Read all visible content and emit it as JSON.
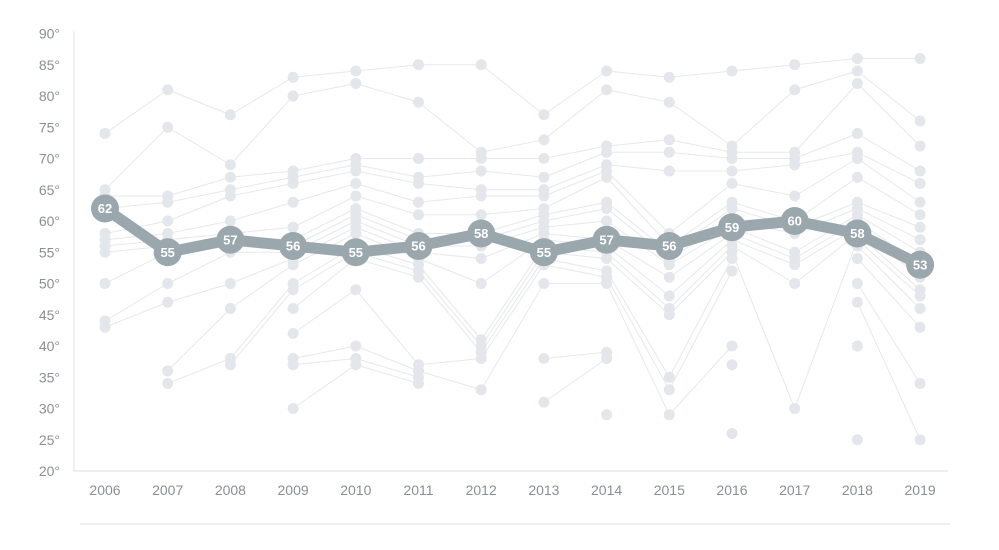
{
  "chart_data": {
    "type": "line",
    "title": "",
    "xlabel": "",
    "ylabel": "",
    "x": [
      "2006",
      "2007",
      "2008",
      "2009",
      "2010",
      "2011",
      "2012",
      "2013",
      "2014",
      "2015",
      "2016",
      "2017",
      "2018",
      "2019"
    ],
    "y_ticks": [
      "20°",
      "25°",
      "30°",
      "35°",
      "40°",
      "45°",
      "50°",
      "55°",
      "60°",
      "65°",
      "70°",
      "75°",
      "80°",
      "85°",
      "90°"
    ],
    "ylim": [
      20,
      90
    ],
    "grid": false,
    "highlight_series": {
      "values": [
        62,
        55,
        57,
        56,
        55,
        56,
        58,
        55,
        57,
        56,
        59,
        60,
        58,
        53
      ],
      "labels": [
        "62",
        "55",
        "57",
        "56",
        "55",
        "56",
        "58",
        "55",
        "57",
        "56",
        "59",
        "60",
        "58",
        "53"
      ]
    },
    "background_points": [
      [
        74,
        65,
        64,
        62,
        58,
        57,
        56,
        55,
        50,
        44,
        43
      ],
      [
        81,
        75,
        64,
        63,
        60,
        58,
        57,
        56,
        55,
        50,
        47,
        36,
        34
      ],
      [
        77,
        69,
        67,
        65,
        64,
        60,
        58,
        57,
        56,
        55,
        50,
        46,
        38,
        37
      ],
      [
        83,
        80,
        68,
        67,
        66,
        63,
        59,
        57,
        56,
        55,
        54,
        53,
        50,
        49,
        46,
        42,
        38,
        37,
        30
      ],
      [
        84,
        82,
        70,
        69,
        68,
        66,
        64,
        62,
        61,
        60,
        59,
        58,
        56,
        55,
        54,
        49,
        40,
        38,
        37
      ],
      [
        85,
        79,
        70,
        67,
        66,
        63,
        61,
        58,
        57,
        56,
        55,
        54,
        53,
        52,
        51,
        37,
        36,
        35,
        34
      ],
      [
        85,
        71,
        70,
        68,
        65,
        64,
        61,
        58,
        57,
        56,
        54,
        50,
        41,
        40,
        39,
        38,
        33
      ],
      [
        77,
        73,
        70,
        67,
        65,
        64,
        62,
        61,
        60,
        59,
        58,
        57,
        56,
        55,
        54,
        53,
        50,
        38,
        31
      ],
      [
        84,
        81,
        72,
        71,
        69,
        68,
        67,
        63,
        62,
        60,
        57,
        56,
        55,
        54,
        52,
        51,
        50,
        39,
        38,
        29
      ],
      [
        83,
        79,
        73,
        71,
        68,
        58,
        56,
        55,
        54,
        53,
        51,
        48,
        46,
        45,
        35,
        33,
        29
      ],
      [
        84,
        72,
        71,
        70,
        68,
        66,
        63,
        62,
        60,
        59,
        58,
        57,
        56,
        55,
        54,
        52,
        40,
        37,
        26
      ],
      [
        85,
        81,
        71,
        70,
        69,
        64,
        60,
        59,
        58,
        55,
        54,
        53,
        50,
        30
      ],
      [
        86,
        84,
        82,
        74,
        71,
        70,
        67,
        63,
        62,
        61,
        60,
        59,
        58,
        57,
        56,
        54,
        50,
        47,
        40,
        25
      ],
      [
        86,
        76,
        72,
        68,
        66,
        63,
        61,
        59,
        57,
        55,
        53,
        51,
        49,
        48,
        46,
        43,
        34,
        25
      ]
    ],
    "colors": {
      "highlight": "#9aa7ad",
      "background_points": "#e3e6ea",
      "background_lines": "#e6e8eb",
      "axis": "#dddfe2",
      "tick_text": "#8a8f94"
    }
  }
}
